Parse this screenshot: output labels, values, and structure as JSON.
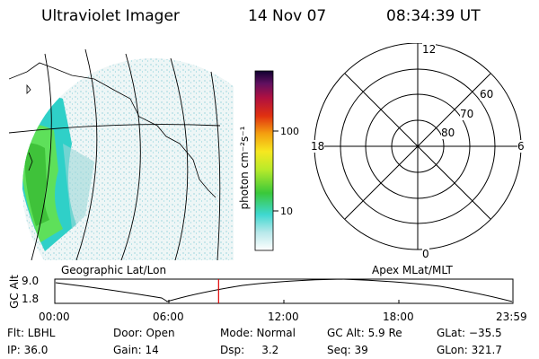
{
  "header": {
    "instrument": "Ultraviolet Imager",
    "date": "14 Nov 07",
    "time": "08:34:39 UT"
  },
  "colorbar": {
    "unit_label": "photon cm⁻²s⁻¹",
    "ticks": [
      "100",
      "10"
    ]
  },
  "polar": {
    "mlt_labels": {
      "top": "12",
      "right": "6",
      "bottom": "0",
      "left": "18"
    },
    "lat_labels": [
      "60",
      "70",
      "80"
    ]
  },
  "panels": {
    "left_caption": "Geographic Lat/Lon",
    "right_caption": "Apex MLat/MLT"
  },
  "altitude_plot": {
    "ylabel": "GC Alt",
    "yticks": [
      "9.0",
      "1.8"
    ],
    "xticks": [
      "00:00",
      "06:00",
      "12:00",
      "18:00",
      "23:59"
    ],
    "current_time_hours": 8.58,
    "current_marker_color": "#e00000"
  },
  "status": {
    "row1": {
      "flt": "Flt: LBHL",
      "door": "Door: Open",
      "mode": "Mode: Normal",
      "gcalt": "GC Alt: 5.9 Re",
      "glat": "GLat: −35.5"
    },
    "row2": {
      "ip": "IP: 36.0",
      "gain": "Gain: 14",
      "dsp": "Dsp:     3.2",
      "seq": "Seq: 39",
      "glon": "GLon: 321.7"
    }
  }
}
